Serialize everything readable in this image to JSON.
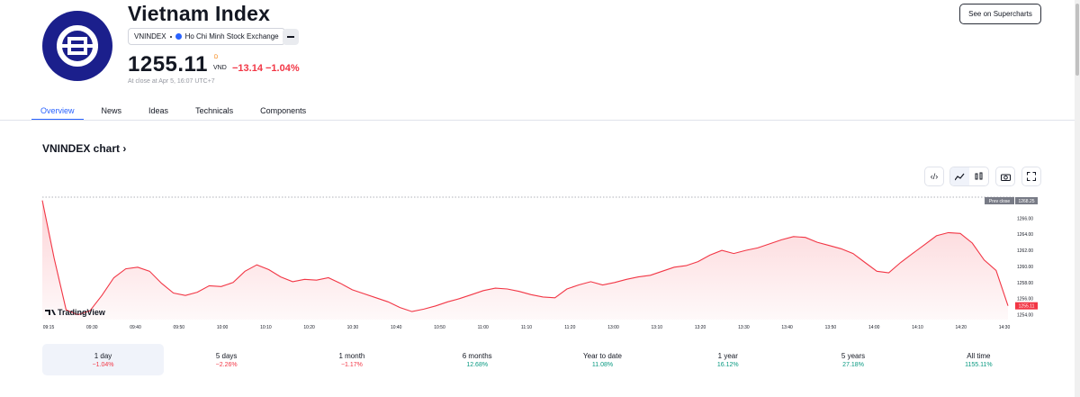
{
  "header": {
    "title": "Vietnam Index",
    "symbol": "VNINDEX",
    "exchange": "Ho Chi Minh Stock Exchange",
    "price": "1255.11",
    "currency_superscript": "D",
    "currency": "VND",
    "change": "−13.14 −1.04%",
    "close_note": "At close at Apr 5, 16:07 UTC+7",
    "supercharts_label": "See on Supercharts"
  },
  "tabs": [
    {
      "label": "Overview",
      "active": true
    },
    {
      "label": "News"
    },
    {
      "label": "Ideas"
    },
    {
      "label": "Technicals"
    },
    {
      "label": "Components"
    }
  ],
  "chart_section": {
    "title": "VNINDEX chart",
    "toolbar": {
      "embed_icon": "code-icon",
      "area_icon": "area-chart-icon",
      "candle_icon": "candlestick-icon",
      "camera_icon": "camera-icon",
      "fullscreen_icon": "fullscreen-icon"
    },
    "watermark": "TradingView"
  },
  "chart_data": {
    "type": "area",
    "x_ticks": [
      "09:15",
      "09:30",
      "09:40",
      "09:50",
      "10:00",
      "10:10",
      "10:20",
      "10:30",
      "10:40",
      "10:50",
      "11:00",
      "11:10",
      "11:20",
      "13:00",
      "13:10",
      "13:20",
      "13:30",
      "13:40",
      "13:50",
      "14:00",
      "14:10",
      "14:20",
      "14:30"
    ],
    "y_ticks": [
      "1266.00",
      "1264.00",
      "1262.00",
      "1260.00",
      "1258.00",
      "1256.00",
      "1254.00"
    ],
    "ylim": [
      1253.4,
      1268.6
    ],
    "prev_close_label": "Prev close",
    "prev_close": "1268.25",
    "last_value": "1255.11",
    "series": [
      {
        "values": [
          1268.2,
          1261.0,
          1254.6,
          1254.0,
          1254.5,
          1256.4,
          1258.6,
          1259.7,
          1259.9,
          1259.4,
          1257.9,
          1256.7,
          1256.4,
          1256.8,
          1257.6,
          1257.5,
          1258.0,
          1259.4,
          1260.2,
          1259.6,
          1258.7,
          1258.1,
          1258.4,
          1258.3,
          1258.6,
          1257.9,
          1257.1,
          1256.6,
          1256.1,
          1255.6,
          1254.9,
          1254.4,
          1254.7,
          1255.1,
          1255.6,
          1256.0,
          1256.5,
          1257.0,
          1257.3,
          1257.2,
          1256.9,
          1256.5,
          1256.2,
          1256.1,
          1257.2,
          1257.7,
          1258.1,
          1257.7,
          1258.0,
          1258.4,
          1258.7,
          1258.9,
          1259.4,
          1259.9,
          1260.1,
          1260.6,
          1261.4,
          1262.0,
          1261.6,
          1262.0,
          1262.3,
          1262.8,
          1263.3,
          1263.7,
          1263.6,
          1263.0,
          1262.6,
          1262.2,
          1261.6,
          1260.5,
          1259.4,
          1259.2,
          1260.5,
          1261.6,
          1262.7,
          1263.8,
          1264.2,
          1264.1,
          1262.9,
          1260.8,
          1259.5,
          1255.11
        ]
      }
    ]
  },
  "periods": [
    {
      "label": "1 day",
      "value": "−1.04%",
      "trend": "neg",
      "selected": true
    },
    {
      "label": "5 days",
      "value": "−2.26%",
      "trend": "neg"
    },
    {
      "label": "1 month",
      "value": "−1.17%",
      "trend": "neg"
    },
    {
      "label": "6 months",
      "value": "12.68%",
      "trend": "pos"
    },
    {
      "label": "Year to date",
      "value": "11.08%",
      "trend": "pos"
    },
    {
      "label": "1 year",
      "value": "16.12%",
      "trend": "pos"
    },
    {
      "label": "5 years",
      "value": "27.18%",
      "trend": "pos"
    },
    {
      "label": "All time",
      "value": "1155.11%",
      "trend": "pos"
    }
  ]
}
